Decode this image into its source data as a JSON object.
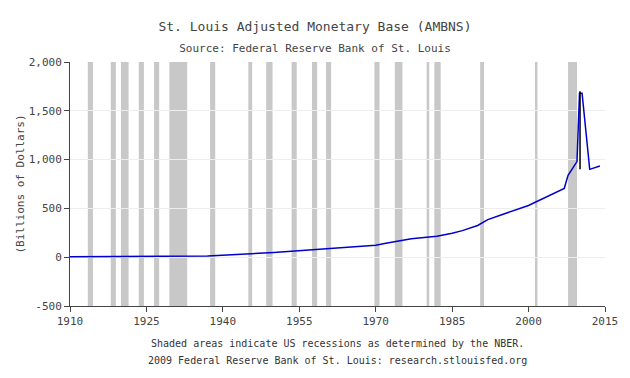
{
  "chart_data": {
    "type": "line",
    "title": "St. Louis Adjusted Monetary Base (AMBNS)",
    "subtitle": "Source: Federal Reserve Bank of St. Louis",
    "ylabel": "(Billions of Dollars)",
    "annotations": [
      "Shaded areas indicate US recessions as determined by the NBER.",
      "2009 Federal Reserve Bank of St. Louis: research.stlouisfed.org"
    ],
    "x": [
      1910,
      1913,
      1914,
      1915,
      1918,
      1919,
      1920,
      1921,
      1922,
      1925,
      1926,
      1928,
      1929,
      1933,
      1935,
      1937,
      1938,
      1940,
      1942,
      1945,
      1947,
      1948,
      1950,
      1953,
      1955,
      1957,
      1960,
      1962,
      1965,
      1967,
      1970,
      1972,
      1975,
      1977,
      1980,
      1982,
      1985,
      1987,
      1990,
      1992,
      1995,
      1997,
      2000,
      2001,
      2003,
      2005,
      2007,
      2007.75,
      2009.5,
      2010.0,
      2010.5,
      2012,
      2014
    ],
    "series": [
      {
        "type": "line",
        "color": "#0000cc",
        "values": [
          3.5,
          4.0,
          4.5,
          5.5,
          7.5,
          7.0,
          6.5,
          6.8,
          7.0,
          7.2,
          7.3,
          7.4,
          7.5,
          8.5,
          10.5,
          13.0,
          16.0,
          20.0,
          26.0,
          36.0,
          38.0,
          42.0,
          49.0,
          60.0,
          67.0,
          70.0,
          80.0,
          88.0,
          98.0,
          108.0,
          122.0,
          143.0,
          168.0,
          188.0,
          205.0,
          215.0,
          245.0,
          272.0,
          325.0,
          385.0,
          440.0,
          473.0,
          530.0,
          555.0,
          605.0,
          655.0,
          705.0,
          840.0,
          980.0,
          1680.0,
          1680.0,
          900.0,
          935.0
        ]
      },
      {
        "type": "line",
        "color": "#000000",
        "x": [
          2010.1,
          2010.1
        ],
        "values": [
          900,
          1700
        ]
      }
    ],
    "recessions": {
      "color": "#c8c8c8",
      "ranges": [
        [
          1913.5,
          1914.5
        ],
        [
          1918.0,
          1919.0
        ],
        [
          1920.0,
          1921.5
        ],
        [
          1923.5,
          1924.5
        ],
        [
          1926.5,
          1927.5
        ],
        [
          1929.5,
          1933.0
        ],
        [
          1937.5,
          1938.5
        ],
        [
          1945.0,
          1945.75
        ],
        [
          1948.5,
          1949.75
        ],
        [
          1953.5,
          1954.5
        ],
        [
          1957.5,
          1958.5
        ],
        [
          1960.25,
          1961.25
        ],
        [
          1969.75,
          1970.75
        ],
        [
          1973.75,
          1975.25
        ],
        [
          1980.0,
          1980.5
        ],
        [
          1981.5,
          1982.75
        ],
        [
          1990.5,
          1991.25
        ],
        [
          2001.25,
          2001.75
        ],
        [
          2007.75,
          2009.5
        ]
      ]
    },
    "xlim": [
      1910,
      2015
    ],
    "xticks": [
      1910,
      1925,
      1940,
      1955,
      1970,
      1985,
      2000,
      2015
    ],
    "ylim": [
      -500,
      2000
    ],
    "yticks": [
      -500,
      0,
      500,
      {
        "value": 1000,
        "label": "1,000"
      },
      {
        "value": 1500,
        "label": "1,500"
      },
      {
        "value": 2000,
        "label": "2,000"
      }
    ],
    "grid": "y"
  }
}
